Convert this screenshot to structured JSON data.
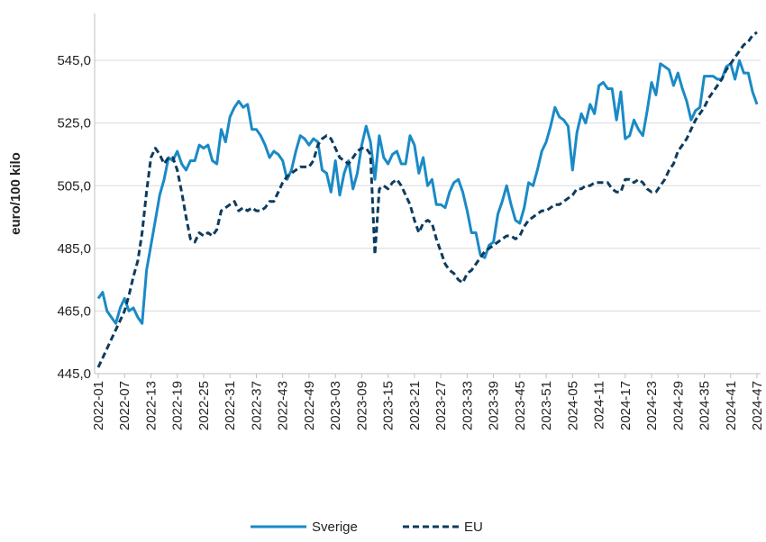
{
  "chart_data": {
    "type": "line",
    "y_label": "euro/100 kilo",
    "categories": [
      "2022-01",
      null,
      null,
      null,
      null,
      null,
      "2022-07",
      null,
      null,
      null,
      null,
      null,
      "2022-13",
      null,
      null,
      null,
      null,
      null,
      "2022-19",
      null,
      null,
      null,
      null,
      null,
      "2022-25",
      null,
      null,
      null,
      null,
      null,
      "2022-31",
      null,
      null,
      null,
      null,
      null,
      "2022-37",
      null,
      null,
      null,
      null,
      null,
      "2022-43",
      null,
      null,
      null,
      null,
      null,
      "2022-49",
      null,
      null,
      null,
      null,
      null,
      "2023-03",
      null,
      null,
      null,
      null,
      null,
      "2023-09",
      null,
      null,
      null,
      null,
      null,
      "2023-15",
      null,
      null,
      null,
      null,
      null,
      "2023-21",
      null,
      null,
      null,
      null,
      null,
      "2023-27",
      null,
      null,
      null,
      null,
      null,
      "2023-33",
      null,
      null,
      null,
      null,
      null,
      "2023-39",
      null,
      null,
      null,
      null,
      null,
      "2023-45",
      null,
      null,
      null,
      null,
      null,
      "2023-51",
      null,
      null,
      null,
      null,
      null,
      "2024-05",
      null,
      null,
      null,
      null,
      null,
      "2024-11",
      null,
      null,
      null,
      null,
      null,
      "2024-17",
      null,
      null,
      null,
      null,
      null,
      "2024-23",
      null,
      null,
      null,
      null,
      null,
      "2024-29",
      null,
      null,
      null,
      null,
      null,
      "2024-35",
      null,
      null,
      null,
      null,
      null,
      "2024-41",
      null,
      null,
      null,
      null,
      null,
      "2024-47"
    ],
    "series": [
      {
        "name": "Sverige",
        "color": "#1a8ac6",
        "line_style": "solid",
        "values": [
          469,
          471,
          465,
          463,
          461,
          466,
          469,
          465,
          466,
          463,
          461,
          478,
          486,
          494,
          502,
          507,
          514,
          513,
          516,
          512,
          510,
          513,
          513,
          518,
          517,
          518,
          513,
          512,
          523,
          519,
          527,
          530,
          532,
          530,
          531,
          523,
          523,
          521,
          518,
          514,
          516,
          515,
          513,
          507,
          510,
          516,
          521,
          520,
          518,
          520,
          519,
          510,
          509,
          503,
          513,
          502,
          509,
          513,
          504,
          509,
          518,
          524,
          519,
          507,
          521,
          514,
          512,
          515,
          516,
          512,
          512,
          521,
          518,
          509,
          514,
          505,
          507,
          499,
          499,
          498,
          503,
          506,
          507,
          503,
          497,
          490,
          490,
          483,
          482,
          486,
          487,
          496,
          500,
          505,
          499,
          494,
          493,
          498,
          506,
          505,
          510,
          516,
          519,
          524,
          530,
          527,
          526,
          524,
          510,
          522,
          528,
          525,
          531,
          528,
          537,
          538,
          536,
          536,
          526,
          535,
          520,
          521,
          526,
          523,
          521,
          529,
          538,
          534,
          544,
          543,
          542,
          537,
          541,
          536,
          532,
          526,
          529,
          530,
          540,
          540,
          540,
          539,
          539,
          543,
          544,
          539,
          545,
          541,
          541,
          535,
          531
        ]
      },
      {
        "name": "EU",
        "color": "#0d3b5e",
        "line_style": "dashed",
        "values": [
          447,
          450,
          453,
          456,
          459,
          462,
          465,
          470,
          476,
          481,
          490,
          503,
          514,
          517,
          515,
          512,
          514,
          514,
          510,
          503,
          495,
          488,
          487,
          490,
          489,
          490,
          489,
          491,
          497,
          498,
          499,
          500,
          497,
          498,
          497,
          498,
          497,
          497,
          498,
          500,
          500,
          503,
          506,
          508,
          509,
          510,
          511,
          511,
          511,
          513,
          518,
          520,
          521,
          520,
          517,
          514,
          513,
          512,
          514,
          516,
          517,
          517,
          515,
          483,
          504,
          505,
          504,
          506,
          507,
          505,
          502,
          499,
          494,
          490,
          493,
          494,
          493,
          488,
          484,
          480,
          478,
          477,
          475,
          474,
          477,
          478,
          480,
          482,
          484,
          485,
          486,
          487,
          488,
          489,
          489,
          488,
          489,
          492,
          494,
          495,
          496,
          497,
          497,
          498,
          499,
          499,
          500,
          501,
          502,
          504,
          504,
          505,
          505,
          506,
          506,
          506,
          506,
          504,
          503,
          503,
          507,
          507,
          506,
          507,
          506,
          504,
          503,
          503,
          505,
          507,
          510,
          512,
          516,
          518,
          520,
          523,
          526,
          528,
          530,
          533,
          535,
          537,
          539,
          542,
          544,
          546,
          548,
          550,
          551,
          553,
          554
        ]
      }
    ],
    "ylim": [
      445,
      560
    ],
    "yticks": [
      {
        "value": 445,
        "label": "445,0"
      },
      {
        "value": 465,
        "label": "465,0"
      },
      {
        "value": 485,
        "label": "485,0"
      },
      {
        "value": 505,
        "label": "505,0"
      },
      {
        "value": 525,
        "label": "525,0"
      },
      {
        "value": 545,
        "label": "545,0"
      }
    ],
    "grid": true,
    "legend": "bottom"
  }
}
